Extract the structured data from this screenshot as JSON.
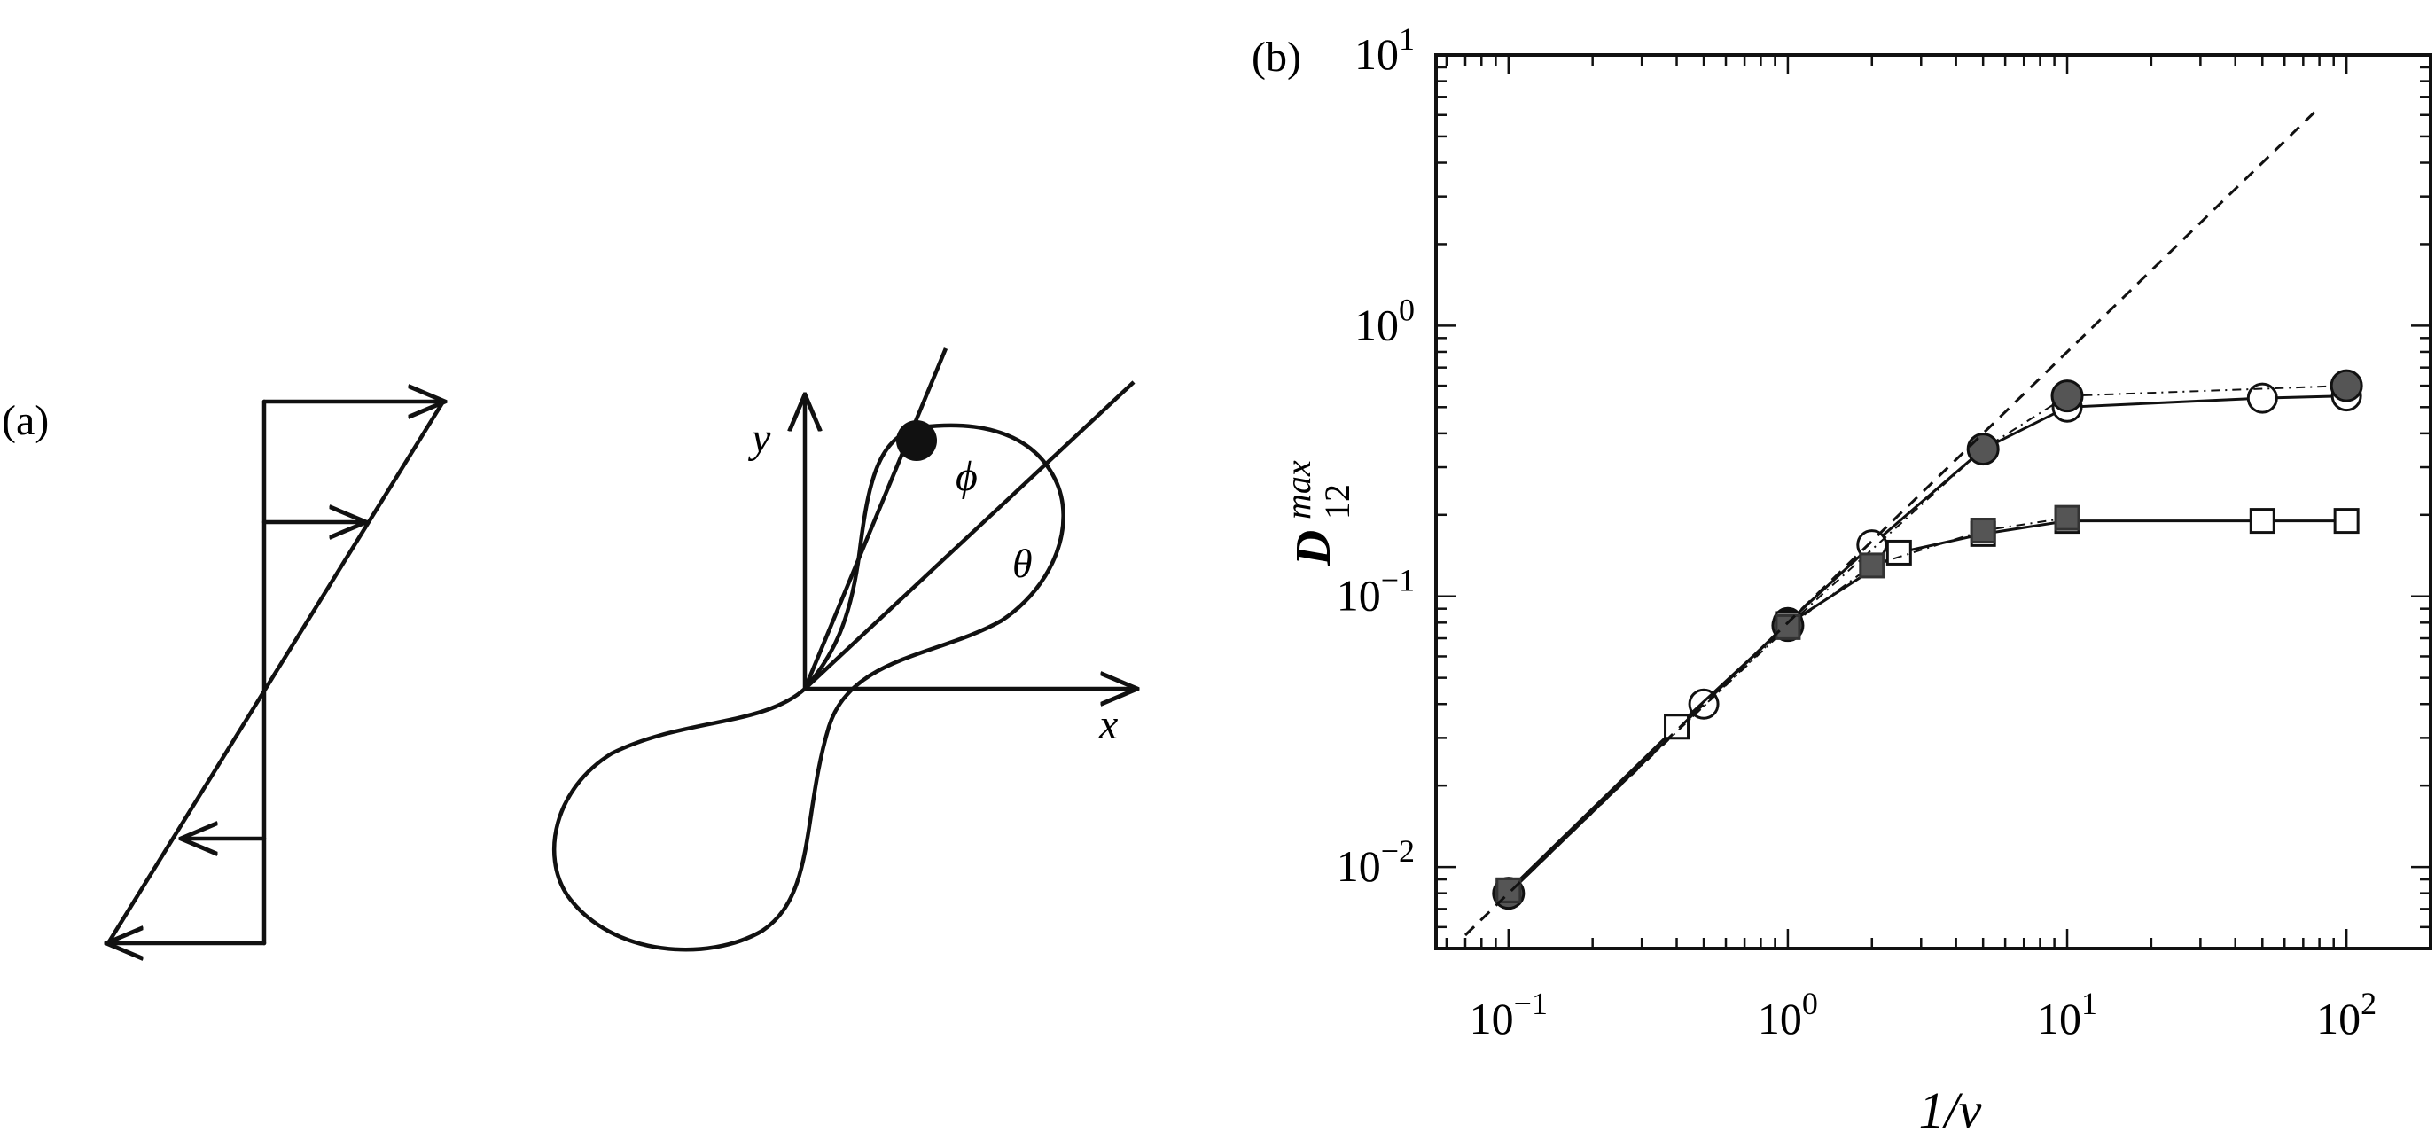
{
  "panel_a": {
    "label": "(a)",
    "axis_x": "x",
    "axis_y": "y",
    "angle_phi": "ϕ",
    "angle_theta": "θ"
  },
  "panel_b": {
    "label": "(b)",
    "ylabel_main": "D",
    "ylabel_sup": "max",
    "ylabel_sub": "12",
    "xlabel": "1/ν"
  },
  "chart_data": {
    "type": "scatter",
    "title": "",
    "xscale": "log",
    "yscale": "log",
    "xlim": [
      0.055,
      200
    ],
    "ylim": [
      0.005,
      10
    ],
    "xticks": [
      {
        "base": "10",
        "exp": "−1",
        "value": 0.1
      },
      {
        "base": "10",
        "exp": "0",
        "value": 1
      },
      {
        "base": "10",
        "exp": "1",
        "value": 10
      },
      {
        "base": "10",
        "exp": "2",
        "value": 100
      }
    ],
    "yticks": [
      {
        "base": "10",
        "exp": "−2",
        "value": 0.01
      },
      {
        "base": "10",
        "exp": "−1",
        "value": 0.1
      },
      {
        "base": "10",
        "exp": "0",
        "value": 1
      },
      {
        "base": "10",
        "exp": "1",
        "value": 10
      }
    ],
    "series": [
      {
        "marker": "circle",
        "fill": "#ffffff",
        "line": "solid",
        "x": [
          0.1,
          0.5,
          1,
          2,
          5,
          10,
          50,
          100
        ],
        "y": [
          0.008,
          0.04,
          0.08,
          0.155,
          0.35,
          0.5,
          0.54,
          0.55
        ]
      },
      {
        "marker": "circle",
        "fill": "#555555",
        "line": "dashdot",
        "x": [
          0.1,
          1,
          5,
          10,
          100
        ],
        "y": [
          0.008,
          0.078,
          0.35,
          0.55,
          0.6
        ]
      },
      {
        "marker": "square",
        "fill": "#ffffff",
        "line": "solid",
        "x": [
          0.1,
          0.4,
          1,
          2.5,
          5,
          10,
          50,
          100
        ],
        "y": [
          0.0082,
          0.033,
          0.079,
          0.145,
          0.17,
          0.19,
          0.19,
          0.19
        ]
      },
      {
        "marker": "square",
        "fill": "#555555",
        "line": "dashdot",
        "x": [
          0.1,
          1,
          2,
          5,
          10
        ],
        "y": [
          0.0082,
          0.077,
          0.13,
          0.175,
          0.195
        ]
      },
      {
        "marker": "none",
        "line": "dashed",
        "x": [
          0.07,
          80
        ],
        "y": [
          0.0056,
          6.4
        ]
      }
    ]
  }
}
